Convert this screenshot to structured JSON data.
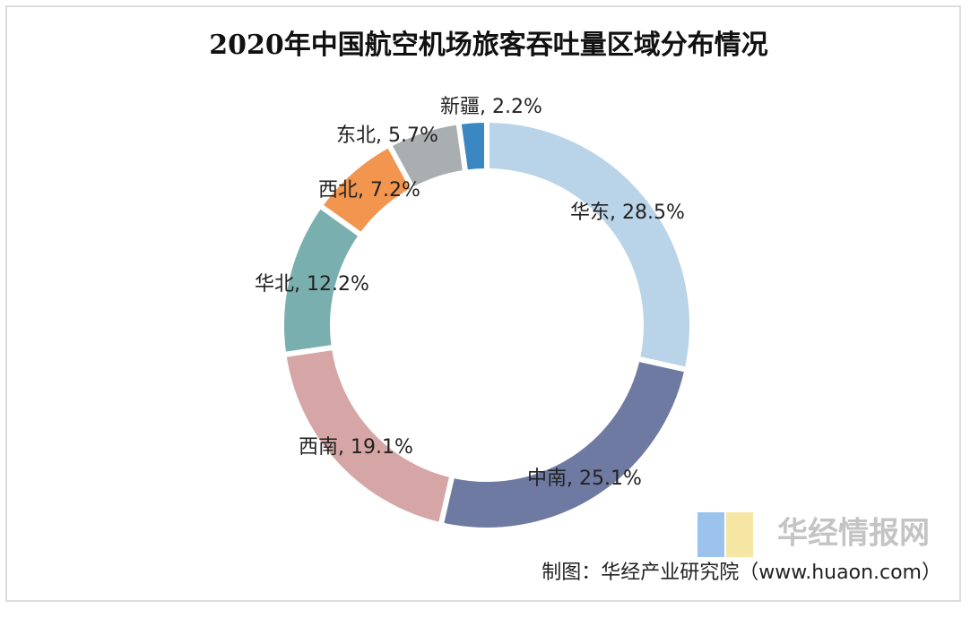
{
  "chart_data": {
    "type": "donut",
    "title": "2020年中国航空机场旅客吞吐量区域分布情况",
    "categories": [
      "华东",
      "中南",
      "西南",
      "华北",
      "西北",
      "东北",
      "新疆"
    ],
    "values": [
      28.5,
      25.1,
      19.1,
      12.2,
      7.2,
      5.7,
      2.2
    ],
    "value_labels": [
      "华东, 28.5%",
      "中南, 25.1%",
      "西南, 19.1%",
      "华北, 12.2%",
      "西北, 7.2%",
      "东北, 5.7%",
      "新疆, 2.2%"
    ],
    "colors": [
      "#b9d4e8",
      "#6e7aa1",
      "#d5a6a5",
      "#79afae",
      "#f2954f",
      "#a9aeb0",
      "#3b87c1"
    ],
    "source": "制图：华经产业研究院（www.huaon.com）",
    "watermark": "华经情报网"
  }
}
